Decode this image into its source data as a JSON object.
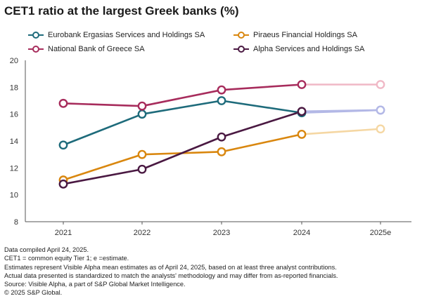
{
  "title": "CET1 ratio at the largest Greek banks (%)",
  "chart_data": {
    "type": "line",
    "categories": [
      "2021",
      "2022",
      "2023",
      "2024",
      "2025e"
    ],
    "estimate_index": 4,
    "ylim": [
      8,
      20
    ],
    "yticks": [
      8,
      10,
      12,
      14,
      16,
      18,
      20
    ],
    "grid": false,
    "legend_position": "top",
    "series": [
      {
        "name": "Eurobank Ergasias Services and Holdings SA",
        "color": "#1e6b7b",
        "estimate_color": "#b3b8e6",
        "values": [
          13.7,
          16.0,
          17.0,
          16.1,
          16.3
        ]
      },
      {
        "name": "Piraeus Financial Holdings SA",
        "color": "#d9870f",
        "estimate_color": "#f5d7a3",
        "values": [
          11.1,
          13.0,
          13.2,
          14.5,
          14.9
        ]
      },
      {
        "name": "National Bank of Greece SA",
        "color": "#a72c5c",
        "estimate_color": "#f0b8c6",
        "values": [
          16.8,
          16.6,
          17.8,
          18.2,
          18.2
        ]
      },
      {
        "name": "Alpha Services and Holdings SA",
        "color": "#4a1942",
        "estimate_color": "#b3b8e6",
        "values": [
          10.8,
          11.9,
          14.3,
          16.2,
          16.3
        ]
      }
    ]
  },
  "notes": [
    "Data compiled April 24, 2025.",
    "CET1 = common equity Tier 1; e =estimate.",
    "Estimates represent Visible Alpha mean estimates as of April 24, 2025, based on at least three analyst contributions.",
    "Actual data presented is standardized to match the analysts' methodology and may differ from as-reported financials.",
    "Source: Visible Alpha, a part of S&P Global Market Intelligence.",
    "© 2025 S&P Global."
  ]
}
